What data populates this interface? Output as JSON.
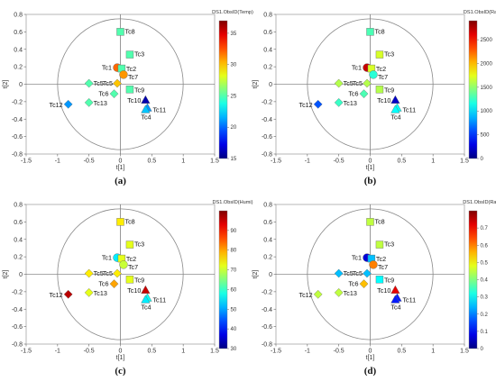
{
  "chart_data": [
    {
      "type": "scatter",
      "caption": "(a)",
      "xlabel": "t[1]",
      "ylabel": "t[2]",
      "xlim": [
        -1.5,
        1.5
      ],
      "ylim": [
        -0.8,
        0.8
      ],
      "xticks": [
        "-1.5",
        "-1",
        "-0.5",
        "0",
        "0.5",
        "1",
        "1.5"
      ],
      "yticks": [
        "-0.8",
        "-0.6",
        "-0.4",
        "-0.2",
        "0",
        "0.2",
        "0.4",
        "0.6",
        "0.8"
      ],
      "colorbar": {
        "title": "DS1.ObsID(Temp)",
        "min": 15,
        "max": 37,
        "ticks": [
          "15",
          "20",
          "25",
          "30",
          "35"
        ]
      },
      "points": [
        {
          "label": "Tc8",
          "x": 0.0,
          "y": 0.6,
          "shape": "square",
          "value": 25
        },
        {
          "label": "Tc3",
          "x": 0.15,
          "y": 0.34,
          "shape": "square",
          "value": 25
        },
        {
          "label": "Tc1",
          "x": -0.05,
          "y": 0.19,
          "shape": "circle",
          "value": 32
        },
        {
          "label": "Tc2",
          "x": 0.02,
          "y": 0.18,
          "shape": "square",
          "value": 25
        },
        {
          "label": "Tc7",
          "x": 0.05,
          "y": 0.11,
          "shape": "circle",
          "value": 31
        },
        {
          "label": "Tc5",
          "x": -0.5,
          "y": 0.01,
          "shape": "diamond",
          "value": 25
        },
        {
          "label": "Tc5",
          "x": -0.05,
          "y": 0.01,
          "shape": "diamond",
          "value": 30
        },
        {
          "label": "Tc6",
          "x": -0.1,
          "y": -0.11,
          "shape": "diamond",
          "value": 25
        },
        {
          "label": "Tc9",
          "x": 0.15,
          "y": -0.06,
          "shape": "square",
          "value": 25
        },
        {
          "label": "Tc10",
          "x": 0.4,
          "y": -0.18,
          "shape": "triangle",
          "value": 16
        },
        {
          "label": "Tc11",
          "x": 0.43,
          "y": -0.27,
          "shape": "triangle",
          "value": 21
        },
        {
          "label": "Tc12",
          "x": -0.83,
          "y": -0.23,
          "shape": "diamond",
          "value": 21
        },
        {
          "label": "Tc13",
          "x": -0.5,
          "y": -0.21,
          "shape": "diamond",
          "value": 25
        },
        {
          "label": "Tc4",
          "x": 0.4,
          "y": -0.29,
          "shape": "triangle",
          "value": 22
        }
      ]
    },
    {
      "type": "scatter",
      "caption": "(b)",
      "xlabel": "t[1]",
      "ylabel": "t[2]",
      "xlim": [
        -1.5,
        1.5
      ],
      "ylim": [
        -0.8,
        0.8
      ],
      "xticks": [
        "-1.5",
        "-1",
        "-0.5",
        "0",
        "0.5",
        "1",
        "1.5"
      ],
      "yticks": [
        "-0.8",
        "-0.6",
        "-0.4",
        "-0.2",
        "0",
        "0.2",
        "0.4",
        "0.6",
        "0.8"
      ],
      "colorbar": {
        "title": "DS1.ObsID(Rad)",
        "min": 0,
        "max": 2900,
        "ticks": [
          "0",
          "500",
          "1000",
          "1500",
          "2000",
          "2500"
        ]
      },
      "points": [
        {
          "label": "Tc8",
          "x": 0.0,
          "y": 0.6,
          "shape": "square",
          "value": 1300
        },
        {
          "label": "Tc3",
          "x": 0.15,
          "y": 0.34,
          "shape": "square",
          "value": 1700
        },
        {
          "label": "Tc1",
          "x": -0.05,
          "y": 0.19,
          "shape": "circle",
          "value": 2700
        },
        {
          "label": "Tc2",
          "x": 0.02,
          "y": 0.18,
          "shape": "square",
          "value": 1700
        },
        {
          "label": "Tc7",
          "x": 0.05,
          "y": 0.11,
          "shape": "circle",
          "value": 1200
        },
        {
          "label": "Tc5",
          "x": -0.5,
          "y": 0.01,
          "shape": "diamond",
          "value": 1600
        },
        {
          "label": "Tc5",
          "x": -0.05,
          "y": 0.01,
          "shape": "diamond",
          "value": 1600
        },
        {
          "label": "Tc6",
          "x": -0.1,
          "y": -0.11,
          "shape": "diamond",
          "value": 1300
        },
        {
          "label": "Tc9",
          "x": 0.15,
          "y": -0.06,
          "shape": "square",
          "value": 1600
        },
        {
          "label": "Tc10",
          "x": 0.4,
          "y": -0.18,
          "shape": "triangle",
          "value": 200
        },
        {
          "label": "Tc11",
          "x": 0.43,
          "y": -0.27,
          "shape": "triangle",
          "value": 1100
        },
        {
          "label": "Tc12",
          "x": -0.83,
          "y": -0.23,
          "shape": "diamond",
          "value": 600
        },
        {
          "label": "Tc13",
          "x": -0.5,
          "y": -0.21,
          "shape": "diamond",
          "value": 1250
        },
        {
          "label": "Tc4",
          "x": 0.4,
          "y": -0.29,
          "shape": "triangle",
          "value": 1100
        }
      ]
    },
    {
      "type": "scatter",
      "caption": "(c)",
      "xlabel": "t[1]",
      "ylabel": "t[2]",
      "xlim": [
        -1.5,
        1.5
      ],
      "ylim": [
        -0.8,
        0.8
      ],
      "xticks": [
        "-1.5",
        "-1",
        "-0.5",
        "0",
        "0.5",
        "1",
        "1.5"
      ],
      "yticks": [
        "-0.8",
        "-0.6",
        "-0.4",
        "-0.2",
        "0",
        "0.2",
        "0.4",
        "0.6",
        "0.8"
      ],
      "colorbar": {
        "title": "DS1.ObsID(Humi)",
        "min": 30,
        "max": 100,
        "ticks": [
          "30",
          "40",
          "50",
          "60",
          "70",
          "80",
          "90"
        ]
      },
      "points": [
        {
          "label": "Tc8",
          "x": 0.0,
          "y": 0.6,
          "shape": "square",
          "value": 75
        },
        {
          "label": "Tc3",
          "x": 0.15,
          "y": 0.34,
          "shape": "square",
          "value": 72
        },
        {
          "label": "Tc1",
          "x": -0.05,
          "y": 0.19,
          "shape": "circle",
          "value": 55
        },
        {
          "label": "Tc2",
          "x": 0.02,
          "y": 0.18,
          "shape": "square",
          "value": 72
        },
        {
          "label": "Tc7",
          "x": 0.05,
          "y": 0.11,
          "shape": "circle",
          "value": 70
        },
        {
          "label": "Tc5",
          "x": -0.5,
          "y": 0.01,
          "shape": "diamond",
          "value": 75
        },
        {
          "label": "Tc5",
          "x": -0.05,
          "y": 0.01,
          "shape": "diamond",
          "value": 75
        },
        {
          "label": "Tc6",
          "x": -0.1,
          "y": -0.11,
          "shape": "diamond",
          "value": 80
        },
        {
          "label": "Tc9",
          "x": 0.15,
          "y": -0.06,
          "shape": "square",
          "value": 72
        },
        {
          "label": "Tc10",
          "x": 0.4,
          "y": -0.18,
          "shape": "triangle",
          "value": 95
        },
        {
          "label": "Tc11",
          "x": 0.43,
          "y": -0.27,
          "shape": "triangle",
          "value": 57
        },
        {
          "label": "Tc12",
          "x": -0.83,
          "y": -0.23,
          "shape": "diamond",
          "value": 96
        },
        {
          "label": "Tc13",
          "x": -0.5,
          "y": -0.21,
          "shape": "diamond",
          "value": 72
        },
        {
          "label": "Tc4",
          "x": 0.4,
          "y": -0.29,
          "shape": "triangle",
          "value": 55
        }
      ]
    },
    {
      "type": "scatter",
      "caption": "(d)",
      "xlabel": "t[1]",
      "ylabel": "t[2]",
      "xlim": [
        -1.5,
        1.5
      ],
      "ylim": [
        -0.8,
        0.8
      ],
      "xticks": [
        "-1.5",
        "-1",
        "-0.5",
        "0",
        "0.5",
        "1",
        "1.5"
      ],
      "yticks": [
        "-0.8",
        "-0.6",
        "-0.4",
        "-0.2",
        "0",
        "0.2",
        "0.4",
        "0.6",
        "0.8"
      ],
      "colorbar": {
        "title": "DS1.ObsID(Rain)",
        "min": 0,
        "max": 0.8,
        "ticks": [
          "0",
          "0.1",
          "0.2",
          "0.3",
          "0.4",
          "0.5",
          "0.6",
          "0.7"
        ]
      },
      "points": [
        {
          "label": "Tc8",
          "x": 0.0,
          "y": 0.6,
          "shape": "square",
          "value": 0.45
        },
        {
          "label": "Tc3",
          "x": 0.15,
          "y": 0.34,
          "shape": "square",
          "value": 0.45
        },
        {
          "label": "Tc1",
          "x": -0.05,
          "y": 0.19,
          "shape": "circle",
          "value": 0.07
        },
        {
          "label": "Tc2",
          "x": 0.02,
          "y": 0.18,
          "shape": "square",
          "value": 0.25
        },
        {
          "label": "Tc7",
          "x": 0.05,
          "y": 0.11,
          "shape": "circle",
          "value": 0.6
        },
        {
          "label": "Tc5",
          "x": -0.5,
          "y": 0.01,
          "shape": "diamond",
          "value": 0.25
        },
        {
          "label": "Tc5",
          "x": -0.05,
          "y": 0.01,
          "shape": "diamond",
          "value": 0.25
        },
        {
          "label": "Tc6",
          "x": -0.1,
          "y": -0.11,
          "shape": "diamond",
          "value": 0.55
        },
        {
          "label": "Tc9",
          "x": 0.15,
          "y": -0.06,
          "shape": "square",
          "value": 0.3
        },
        {
          "label": "Tc10",
          "x": 0.4,
          "y": -0.18,
          "shape": "triangle",
          "value": 0.72
        },
        {
          "label": "Tc11",
          "x": 0.43,
          "y": -0.27,
          "shape": "triangle",
          "value": 0.12
        },
        {
          "label": "Tc12",
          "x": -0.83,
          "y": -0.23,
          "shape": "diamond",
          "value": 0.45
        },
        {
          "label": "Tc13",
          "x": -0.5,
          "y": -0.21,
          "shape": "diamond",
          "value": 0.45
        },
        {
          "label": "Tc4",
          "x": 0.4,
          "y": -0.29,
          "shape": "triangle",
          "value": 0.12
        }
      ]
    }
  ]
}
